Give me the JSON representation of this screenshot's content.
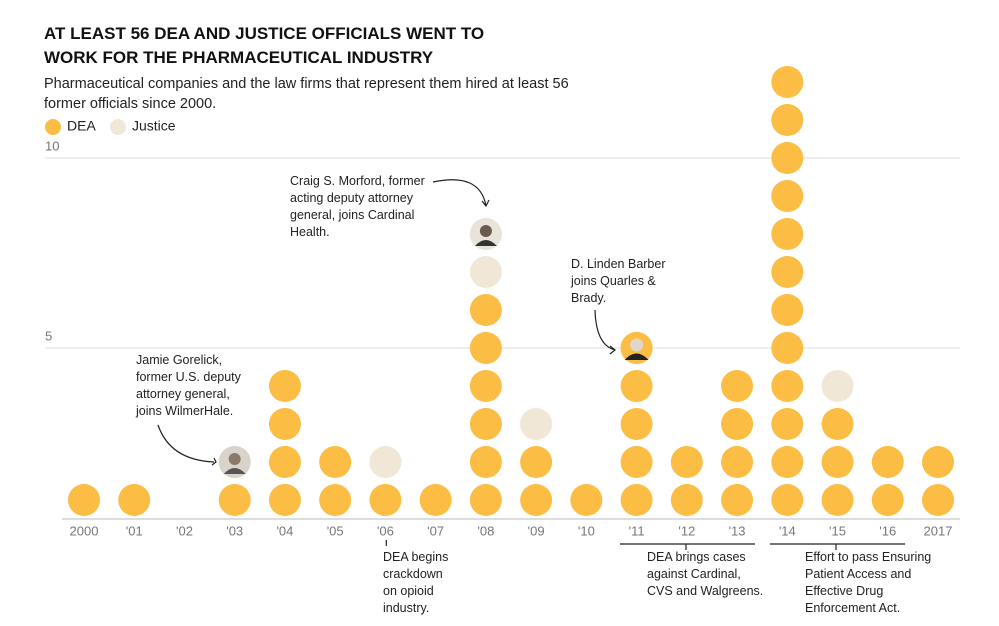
{
  "chart_data": {
    "type": "dot",
    "title": "AT LEAST 56 DEA AND JUSTICE OFFICIALS WENT TO WORK FOR THE PHARMACEUTICAL INDUSTRY",
    "subtitle": "Pharmaceutical companies and the law firms that represent them hired at least 56 former officials since 2000.",
    "categories": [
      "2000",
      "'01",
      "'02",
      "'03",
      "'04",
      "'05",
      "'06",
      "'07",
      "'08",
      "'09",
      "'10",
      "'11",
      "'12",
      "'13",
      "'14",
      "'15",
      "'16",
      "2017"
    ],
    "series": [
      {
        "name": "DEA",
        "color": "#fbbd44",
        "values": [
          1,
          1,
          0,
          1,
          4,
          2,
          1,
          1,
          6,
          2,
          1,
          5,
          2,
          4,
          12,
          3,
          2,
          2
        ]
      },
      {
        "name": "Justice",
        "color": "#f1e7d6",
        "values": [
          0,
          0,
          0,
          1,
          0,
          0,
          1,
          0,
          2,
          1,
          0,
          0,
          0,
          0,
          0,
          1,
          0,
          0
        ]
      }
    ],
    "ylim": [
      0,
      12.5
    ],
    "yticks": [
      5,
      10
    ],
    "grid": true,
    "annotations": [
      "Jamie Gorelick, former U.S. deputy attorney general, joins WilmerHale.",
      "Craig S. Morford, former acting deputy attorney general, joins Cardinal Health.",
      "D. Linden Barber joins Quarles & Brady.",
      "DEA begins crackdown on opioid industry.",
      "DEA brings cases against Cardinal, CVS and Walgreens.",
      "Effort to pass Ensuring Patient Access and Effective Drug Enforcement Act."
    ]
  }
}
